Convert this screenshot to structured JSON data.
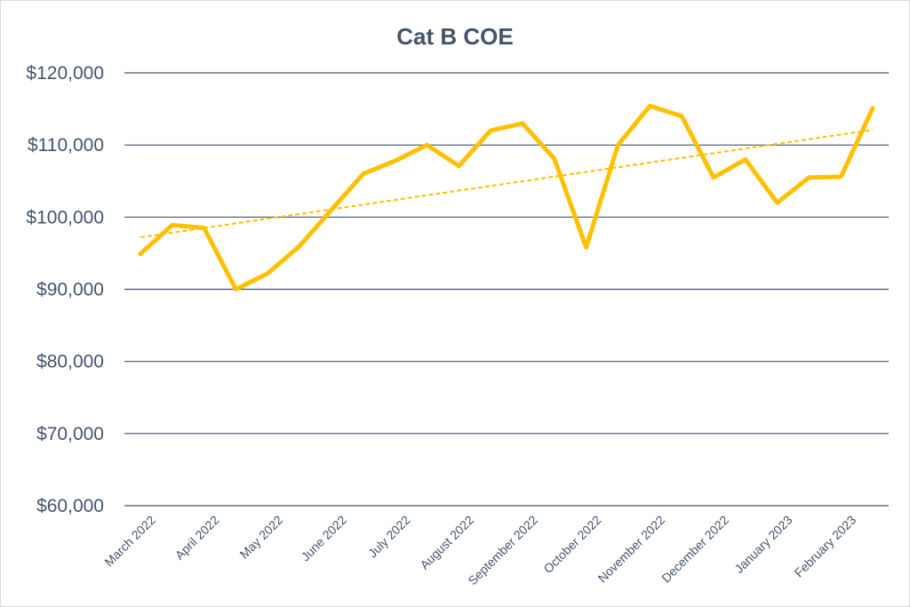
{
  "chart_data": {
    "type": "line",
    "title": "Cat B COE",
    "xlabel": "",
    "ylabel": "",
    "ylim": [
      60000,
      120000
    ],
    "yticks": [
      60000,
      70000,
      80000,
      90000,
      100000,
      110000,
      120000
    ],
    "ytick_labels": [
      "$60,000",
      "$70,000",
      "$80,000",
      "$90,000",
      "$100,000",
      "$110,000",
      "$120,000"
    ],
    "x_tick_labels": [
      "March 2022",
      "April 2022",
      "May 2022",
      "June 2022",
      "July 2022",
      "August 2022",
      "September 2022",
      "October 2022",
      "November 2022",
      "December 2022",
      "January 2023",
      "February 2023"
    ],
    "x": [
      "March 2022 (1st exercise)",
      "March 2022 (2nd exercise)",
      "April 2022 (1st exercise)",
      "April 2022 (2nd exercise)",
      "May 2022 (1st exercise)",
      "May 2022 (2nd exercise)",
      "June 2022 (1st exercise)",
      "June 2022 (2nd exercise)",
      "July 2022 (1st exercise)",
      "July 2022 (2nd exercise)",
      "August 2022 (1st exercise)",
      "August 2022 (2nd exercise)",
      "September 2022 (1st exercise)",
      "September 2022 (2nd exercise)",
      "October 2022 (1st exercise)",
      "October 2022 (2nd exercise)",
      "November 2022 (1st exercise)",
      "November 2022 (2nd exercise)",
      "December 2022 (1st exercise)",
      "December 2022 (2nd exercise)",
      "January 2023 (1st exercise)",
      "January 2023 (2nd exercise)",
      "February 2023 (1st exercise)",
      "February 2023 (2nd exercise)"
    ],
    "series": [
      {
        "values": [
          94900,
          98900,
          98500,
          90000,
          92200,
          96000,
          101000,
          106000,
          107800,
          110000,
          107100,
          112000,
          113000,
          108100,
          95800,
          110000,
          115400,
          114000,
          105500,
          108000,
          102000,
          105500,
          105600,
          115100
        ],
        "color": "#ffc000"
      }
    ],
    "trendline": {
      "type": "linear",
      "style": "dashed",
      "start": 97200,
      "end": 112100,
      "color": "#ffc000"
    },
    "grid": true,
    "legend": "none",
    "colors": {
      "line": "#ffc000",
      "grid": "#44546a",
      "text": "#44546a"
    }
  }
}
